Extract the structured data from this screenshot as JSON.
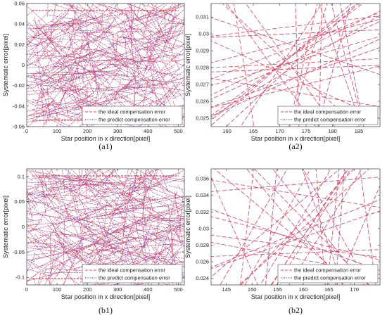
{
  "figure": {
    "series_styles": {
      "ideal": {
        "color": "#e0455a",
        "dash": "dashed"
      },
      "predict": {
        "color": "#1f1fd6",
        "dash": "dotted"
      }
    }
  },
  "chart_data": [
    {
      "id": "a1",
      "type": "line",
      "caption": "(a1)",
      "xlabel": "Star position in x direction[pixel]",
      "ylabel": "Systematic error[pixel]",
      "xlim": [
        0,
        520
      ],
      "ylim": [
        -0.06,
        0.06
      ],
      "xticks": [
        "0",
        "100",
        "200",
        "300",
        "400",
        "500"
      ],
      "yticks": [
        "-0.06",
        "-0.04",
        "-0.02",
        "0",
        "0.02",
        "0.04",
        "0.06"
      ],
      "legend_position": "bottom-right",
      "grid": false,
      "series": [
        {
          "name": "the ideal compensation error",
          "style": "ideal"
        },
        {
          "name": "the predict compensation error",
          "style": "predict"
        }
      ]
    },
    {
      "id": "a2",
      "type": "line",
      "caption": "(a2)",
      "xlabel": "Star position in x direction[pixel]",
      "ylabel": "Systematic error[pixel]",
      "xlim": [
        157,
        189
      ],
      "ylim": [
        0.0245,
        0.0318
      ],
      "xticks": [
        "160",
        "165",
        "170",
        "175",
        "180",
        "185"
      ],
      "yticks": [
        "0.025",
        "0.026",
        "0.027",
        "0.028",
        "0.029",
        "0.03",
        "0.031"
      ],
      "legend_position": "bottom-right",
      "grid": false,
      "series": [
        {
          "name": "the ideal compensation error",
          "style": "ideal"
        },
        {
          "name": "the predict compensation error",
          "style": "predict"
        }
      ]
    },
    {
      "id": "b1",
      "type": "line",
      "caption": "(b1)",
      "xlabel": "Star position in x direction[pixel]",
      "ylabel": "Systematic error[pixel]",
      "xlim": [
        0,
        520
      ],
      "ylim": [
        -0.115,
        0.115
      ],
      "xticks": [
        "0",
        "100",
        "200",
        "300",
        "400",
        "500"
      ],
      "yticks": [
        "-0.1",
        "-0.05",
        "0",
        "0.05",
        "0.1"
      ],
      "legend_position": "bottom-right",
      "grid": false,
      "series": [
        {
          "name": "the ideal compensation error",
          "style": "ideal"
        },
        {
          "name": "the predict compensation error",
          "style": "predict"
        }
      ]
    },
    {
      "id": "b2",
      "type": "line",
      "caption": "(b2)",
      "xlabel": "Star position in x direction[pixel]",
      "ylabel": "Systematic error[pixel]",
      "xlim": [
        142,
        175
      ],
      "ylim": [
        0.0232,
        0.0372
      ],
      "xticks": [
        "145",
        "150",
        "155",
        "160",
        "165",
        "170"
      ],
      "yticks": [
        "0.024",
        "0.026",
        "0.028",
        "0.03",
        "0.032",
        "0.034",
        "0.036"
      ],
      "legend_position": "bottom-right",
      "grid": false,
      "series": [
        {
          "name": "the ideal compensation error",
          "style": "ideal"
        },
        {
          "name": "the predict compensation error",
          "style": "predict"
        }
      ]
    }
  ]
}
